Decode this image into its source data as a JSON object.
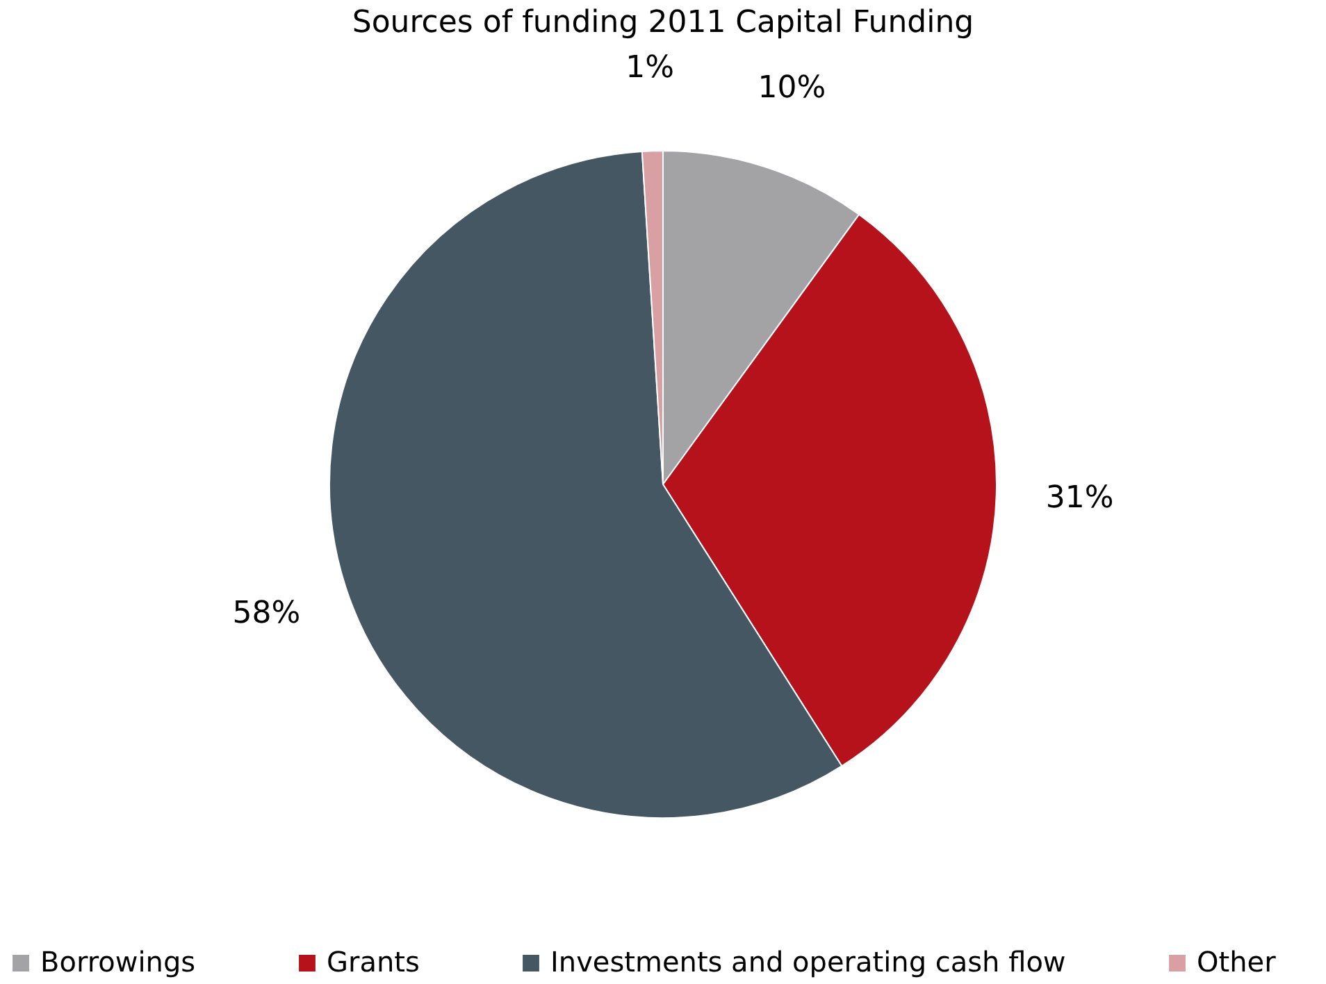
{
  "chart_data": {
    "type": "pie",
    "title": "Sources of funding 2011 Capital Funding",
    "categories": [
      "Borrowings",
      "Grants",
      "Investments and operating cash flow",
      "Other"
    ],
    "values": [
      10,
      31,
      58,
      1
    ],
    "colors": [
      "#a3a3a5",
      "#b5121b",
      "#465764",
      "#d8a0a3"
    ],
    "value_labels": [
      "10%",
      "31%",
      "58%",
      "1%"
    ],
    "legend": "bottom"
  }
}
